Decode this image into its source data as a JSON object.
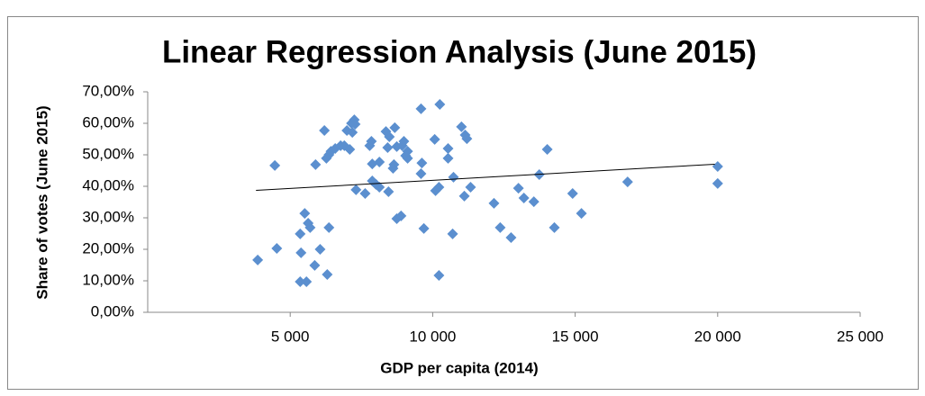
{
  "chart_data": {
    "type": "scatter",
    "title": "Linear Regression Analysis (June 2015)",
    "xlabel": "GDP per capita (2014)",
    "ylabel": "Share of votes (June 2015)",
    "color": "#5b8fcf",
    "xlim": [
      0,
      25000
    ],
    "xticks": [
      {
        "value": 5000,
        "label": "5 000"
      },
      {
        "value": 10000,
        "label": "10 000"
      },
      {
        "value": 15000,
        "label": "15 000"
      },
      {
        "value": 20000,
        "label": "20 000"
      },
      {
        "value": 25000,
        "label": "25 000"
      }
    ],
    "ylim": [
      0,
      70
    ],
    "yticks": [
      {
        "value": 0,
        "label": "0,00%"
      },
      {
        "value": 10,
        "label": "10,00%"
      },
      {
        "value": 20,
        "label": "20,00%"
      },
      {
        "value": 30,
        "label": "30,00%"
      },
      {
        "value": 40,
        "label": "40,00%"
      },
      {
        "value": 50,
        "label": "50,00%"
      },
      {
        "value": 60,
        "label": "60,00%"
      },
      {
        "value": 70,
        "label": "70,00%"
      }
    ],
    "x": [
      3860,
      4460,
      4530,
      5350,
      5510,
      5380,
      5350,
      5570,
      5630,
      5700,
      5890,
      5860,
      6050,
      6200,
      6270,
      6360,
      6430,
      6300,
      6360,
      6580,
      6770,
      6900,
      6990,
      7090,
      7150,
      7250,
      7280,
      7180,
      7310,
      7630,
      7790,
      7850,
      7880,
      7880,
      8010,
      8130,
      8130,
      8360,
      8420,
      8480,
      8450,
      8670,
      8640,
      8610,
      8740,
      8740,
      8890,
      8930,
      8990,
      9050,
      9120,
      9120,
      9590,
      9590,
      9620,
      9690,
      10070,
      10100,
      10220,
      10250,
      10220,
      10540,
      10540,
      10730,
      10700,
      11010,
      11140,
      11200,
      11110,
      11330,
      12150,
      12370,
      12750,
      13010,
      13200,
      13550,
      13740,
      14020,
      14270,
      14910,
      15220,
      16840,
      20000,
      20000
    ],
    "values": [
      16.6,
      46.6,
      20.3,
      24.9,
      31.4,
      18.9,
      9.7,
      9.7,
      28.3,
      26.9,
      46.9,
      14.9,
      20.0,
      57.7,
      48.9,
      50.0,
      51.1,
      12.0,
      26.9,
      52.0,
      52.9,
      52.9,
      57.7,
      51.7,
      60.0,
      61.1,
      59.7,
      57.1,
      38.9,
      37.7,
      52.9,
      54.3,
      47.1,
      41.7,
      40.6,
      39.7,
      47.7,
      57.4,
      52.3,
      55.7,
      38.3,
      58.6,
      46.9,
      45.7,
      52.6,
      29.7,
      30.6,
      52.9,
      54.3,
      49.7,
      48.9,
      51.1,
      64.6,
      44.0,
      47.4,
      26.6,
      54.9,
      38.6,
      39.7,
      66.0,
      11.7,
      52.0,
      48.9,
      42.9,
      24.9,
      58.9,
      56.3,
      55.1,
      36.9,
      39.7,
      34.6,
      26.9,
      23.7,
      39.4,
      36.3,
      35.1,
      43.7,
      51.7,
      26.9,
      37.7,
      31.4,
      41.4,
      46.3,
      40.9
    ],
    "trendline": {
      "x": [
        3800,
        19900
      ],
      "values": [
        38.7,
        47.0
      ]
    }
  }
}
